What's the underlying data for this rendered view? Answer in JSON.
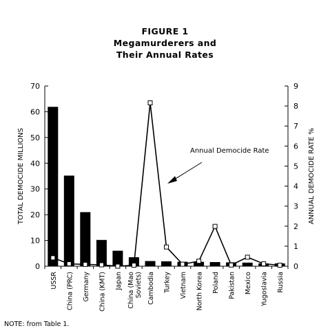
{
  "chart_data": {
    "type": "bar",
    "title_lines": [
      "FIGURE 1",
      "Megamurderers and",
      "Their Annual Rates"
    ],
    "categories": [
      "USSR",
      "China (PRC)",
      "Germany",
      "China (KMT)",
      "Japan",
      "China (Mao Soviets)",
      "Cambodia",
      "Turkey",
      "Vietnam",
      "North Korea",
      "Poland",
      "Pakistan",
      "Mexico",
      "Yugoslavia",
      "Russia"
    ],
    "category_labels": [
      [
        "USSR"
      ],
      [
        "China (PRC)"
      ],
      [
        "Germany"
      ],
      [
        "China (KMT)"
      ],
      [
        "Japan"
      ],
      [
        "China (Mao",
        "Soviets)"
      ],
      [
        "Cambodia"
      ],
      [
        "Turkey"
      ],
      [
        "Vietnam"
      ],
      [
        "North Korea"
      ],
      [
        "Poland"
      ],
      [
        "Pakistan"
      ],
      [
        "Mexico"
      ],
      [
        "Yugoslavia"
      ],
      [
        "Russia"
      ]
    ],
    "series": [
      {
        "kind": "bar",
        "axis": "left",
        "values": [
          61.9,
          35.2,
          21.0,
          10.2,
          6.0,
          3.5,
          2.0,
          1.9,
          1.7,
          1.7,
          1.6,
          1.5,
          1.4,
          1.1,
          1.1
        ]
      },
      {
        "name": "Annual Democide Rate",
        "kind": "line",
        "axis": "right",
        "values": [
          0.42,
          0.12,
          0.09,
          0.07,
          0.0,
          0.05,
          8.16,
          0.96,
          0.1,
          0.25,
          1.99,
          0.06,
          0.45,
          0.12,
          0.05
        ]
      }
    ],
    "ylabel": "TOTAL DEMOCIDE MILLIONS",
    "ylim": [
      0,
      70
    ],
    "yticks": [
      0,
      10,
      20,
      30,
      40,
      50,
      60,
      70
    ],
    "y2label": "ANNUAL DEMOCIDE RATE %",
    "y2lim": [
      0,
      9
    ],
    "y2ticks": [
      0,
      1,
      2,
      3,
      4,
      5,
      6,
      7,
      8,
      9
    ],
    "annotation": "Annual Democide Rate",
    "grid": false,
    "legend": "none"
  },
  "note": "NOTE: from Table 1."
}
